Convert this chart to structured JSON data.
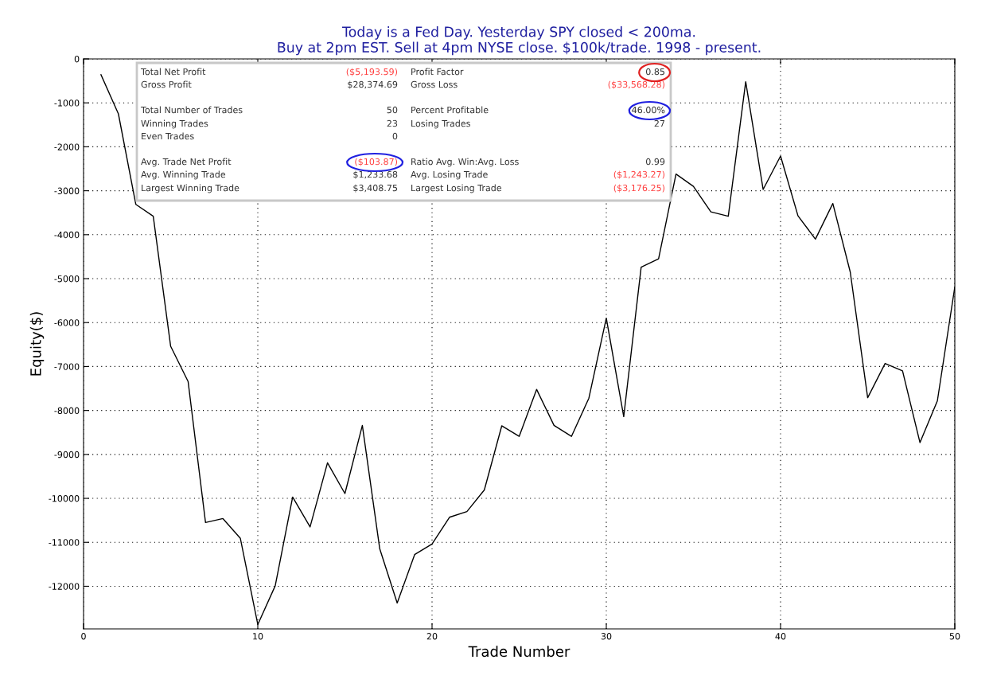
{
  "chart_data": {
    "type": "line",
    "title": "Today is a Fed Day. Yesterday SPY closed < 200ma.\nBuy at 2pm EST. Sell at 4pm NYSE close. $100k/trade. 1998 - present.",
    "xlabel": "Trade Number",
    "ylabel": "Equity($)",
    "x": [
      1,
      2,
      3,
      4,
      5,
      6,
      7,
      8,
      9,
      10,
      11,
      12,
      13,
      14,
      15,
      16,
      17,
      18,
      19,
      20,
      21,
      22,
      23,
      24,
      25,
      26,
      27,
      28,
      29,
      30,
      31,
      32,
      33,
      34,
      35,
      36,
      37,
      38,
      39,
      40,
      41,
      42,
      43,
      44,
      45,
      46,
      47,
      48,
      49,
      50
    ],
    "series": [
      {
        "color": "#000000",
        "values": [
          -360,
          -1250,
          -3310,
          -3580,
          -6540,
          -7340,
          -10550,
          -10460,
          -10910,
          -12870,
          -11990,
          -9970,
          -10650,
          -9190,
          -9890,
          -8340,
          -11150,
          -12380,
          -11280,
          -11040,
          -10430,
          -10300,
          -9810,
          -8350,
          -8590,
          -7520,
          -8340,
          -8590,
          -7720,
          -5900,
          -8140,
          -4740,
          -4550,
          -2620,
          -2900,
          -3480,
          -3580,
          -520,
          -2970,
          -2210,
          -3570,
          -4100,
          -3290,
          -4850,
          -7710,
          -6930,
          -7100,
          -8730,
          -7780,
          -5190
        ]
      }
    ],
    "xlim": [
      0,
      50
    ],
    "xticks": [
      0,
      10,
      20,
      30,
      40,
      50
    ],
    "ylim": [
      -12970,
      0
    ],
    "yticks": [
      0,
      -1000,
      -2000,
      -3000,
      -4000,
      -5000,
      -6000,
      -7000,
      -8000,
      -9000,
      -10000,
      -11000,
      -12000
    ],
    "grid": true,
    "legend": false,
    "marker": "none",
    "line_style": "solid",
    "annotations": [
      "Total Net Profit",
      "($5,193.59)",
      "Gross Profit",
      "$28,374.69",
      "Total Number of Trades",
      "50",
      "Winning Trades",
      "23",
      "Even Trades",
      "0",
      "Avg. Trade Net Profit",
      "($103.87)",
      "Avg. Winning Trade",
      "$1,233.68",
      "Largest Winning Trade",
      "$3,408.75",
      "Profit Factor",
      "0.85",
      "Gross Loss",
      "($33,568.28)",
      "Percent Profitable",
      "46.00%",
      "Losing Trades",
      "27",
      "Ratio Avg. Win:Avg. Loss",
      "0.99",
      "Avg. Losing Trade",
      "($1,243.27)",
      "Largest Losing Trade",
      "($3,176.25)"
    ]
  }
}
